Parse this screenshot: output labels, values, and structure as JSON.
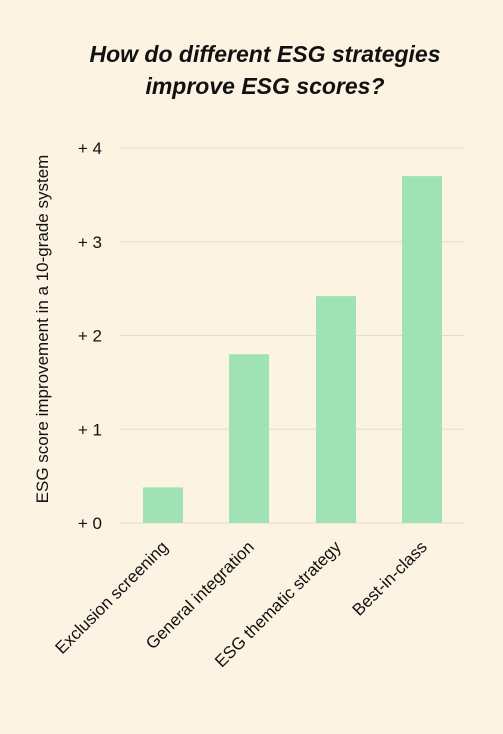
{
  "chart_data": {
    "type": "bar",
    "title_lines": [
      "How do different ESG strategies",
      "improve ESG scores?"
    ],
    "xlabel": "",
    "ylabel": "ESG score improvement in a 10-grade system",
    "categories": [
      "Exclusion screening",
      "General integration",
      "ESG thematic strategy",
      "Best-in-class"
    ],
    "values": [
      0.38,
      1.8,
      2.42,
      3.7
    ],
    "ylim": [
      0,
      4
    ],
    "yticks": [
      0,
      1,
      2,
      3,
      4
    ],
    "ytick_labels": [
      "+ 0",
      "+ 1",
      "+ 2",
      "+ 3",
      "+ 4"
    ],
    "grid": true,
    "colors": {
      "bar": "#9fe3b5",
      "grid": "#e3dcd0",
      "background": "#fdf3e3"
    }
  }
}
